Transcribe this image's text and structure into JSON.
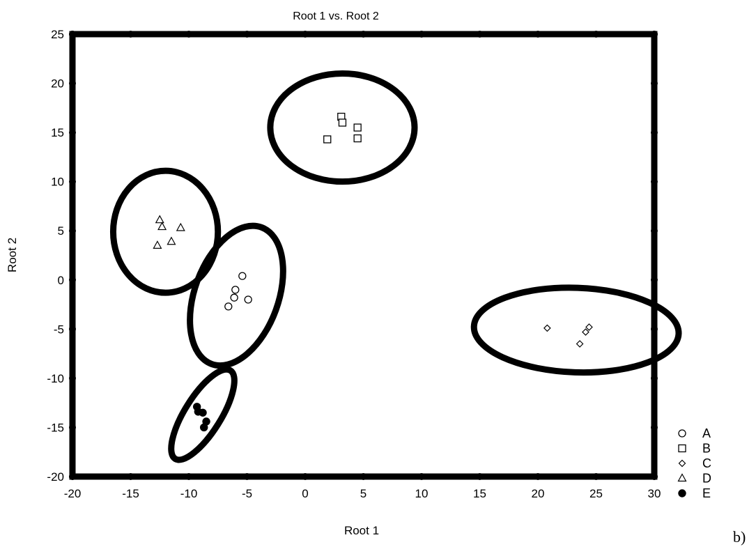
{
  "chart_data": {
    "type": "scatter",
    "title": "Root 1 vs. Root 2",
    "xlabel": "Root 1",
    "ylabel": "Root 2",
    "xlim": [
      -20,
      30
    ],
    "ylim": [
      -20,
      25
    ],
    "xticks": [
      -20,
      -15,
      -10,
      -5,
      0,
      5,
      10,
      15,
      20,
      25,
      30
    ],
    "yticks": [
      -20,
      -15,
      -10,
      -5,
      0,
      5,
      10,
      15,
      20,
      25
    ],
    "grid": false,
    "legend_position": "outside-bottom-right",
    "series": [
      {
        "name": "A",
        "marker": "circle-open",
        "points": [
          [
            -5.4,
            0.4
          ],
          [
            -6.0,
            -1.0
          ],
          [
            -6.1,
            -1.8
          ],
          [
            -6.6,
            -2.7
          ],
          [
            -4.9,
            -2.0
          ]
        ]
      },
      {
        "name": "B",
        "marker": "square-open",
        "points": [
          [
            3.1,
            16.6
          ],
          [
            3.2,
            16.0
          ],
          [
            4.5,
            15.5
          ],
          [
            4.5,
            14.4
          ],
          [
            1.9,
            14.3
          ]
        ]
      },
      {
        "name": "C",
        "marker": "diamond-open",
        "points": [
          [
            20.8,
            -4.9
          ],
          [
            24.4,
            -4.8
          ],
          [
            24.1,
            -5.3
          ],
          [
            23.6,
            -6.5
          ]
        ]
      },
      {
        "name": "D",
        "marker": "triangle-open",
        "points": [
          [
            -12.5,
            6.1
          ],
          [
            -12.3,
            5.4
          ],
          [
            -10.7,
            5.3
          ],
          [
            -11.5,
            3.9
          ],
          [
            -12.7,
            3.5
          ]
        ]
      },
      {
        "name": "E",
        "marker": "circle-filled",
        "points": [
          [
            -9.3,
            -12.9
          ],
          [
            -9.2,
            -13.4
          ],
          [
            -8.8,
            -13.5
          ],
          [
            -8.5,
            -14.4
          ],
          [
            -8.7,
            -15.0
          ]
        ]
      }
    ],
    "confidence_ellipses": [
      {
        "group": "A",
        "cx": -5.9,
        "cy": -1.6,
        "rx": 3.6,
        "ry": 7.4,
        "angle_deg": 20
      },
      {
        "group": "B",
        "cx": 3.2,
        "cy": 15.5,
        "rx": 6.2,
        "ry": 5.5,
        "angle_deg": 0
      },
      {
        "group": "C",
        "cx": 23.3,
        "cy": -5.1,
        "rx": 8.8,
        "ry": 4.3,
        "angle_deg": 2
      },
      {
        "group": "D",
        "cx": -12.0,
        "cy": 4.9,
        "rx": 4.5,
        "ry": 6.2,
        "angle_deg": 0
      },
      {
        "group": "E",
        "cx": -8.8,
        "cy": -13.7,
        "rx": 1.55,
        "ry": 5.3,
        "angle_deg": 32
      }
    ]
  },
  "panel_label": "b)"
}
